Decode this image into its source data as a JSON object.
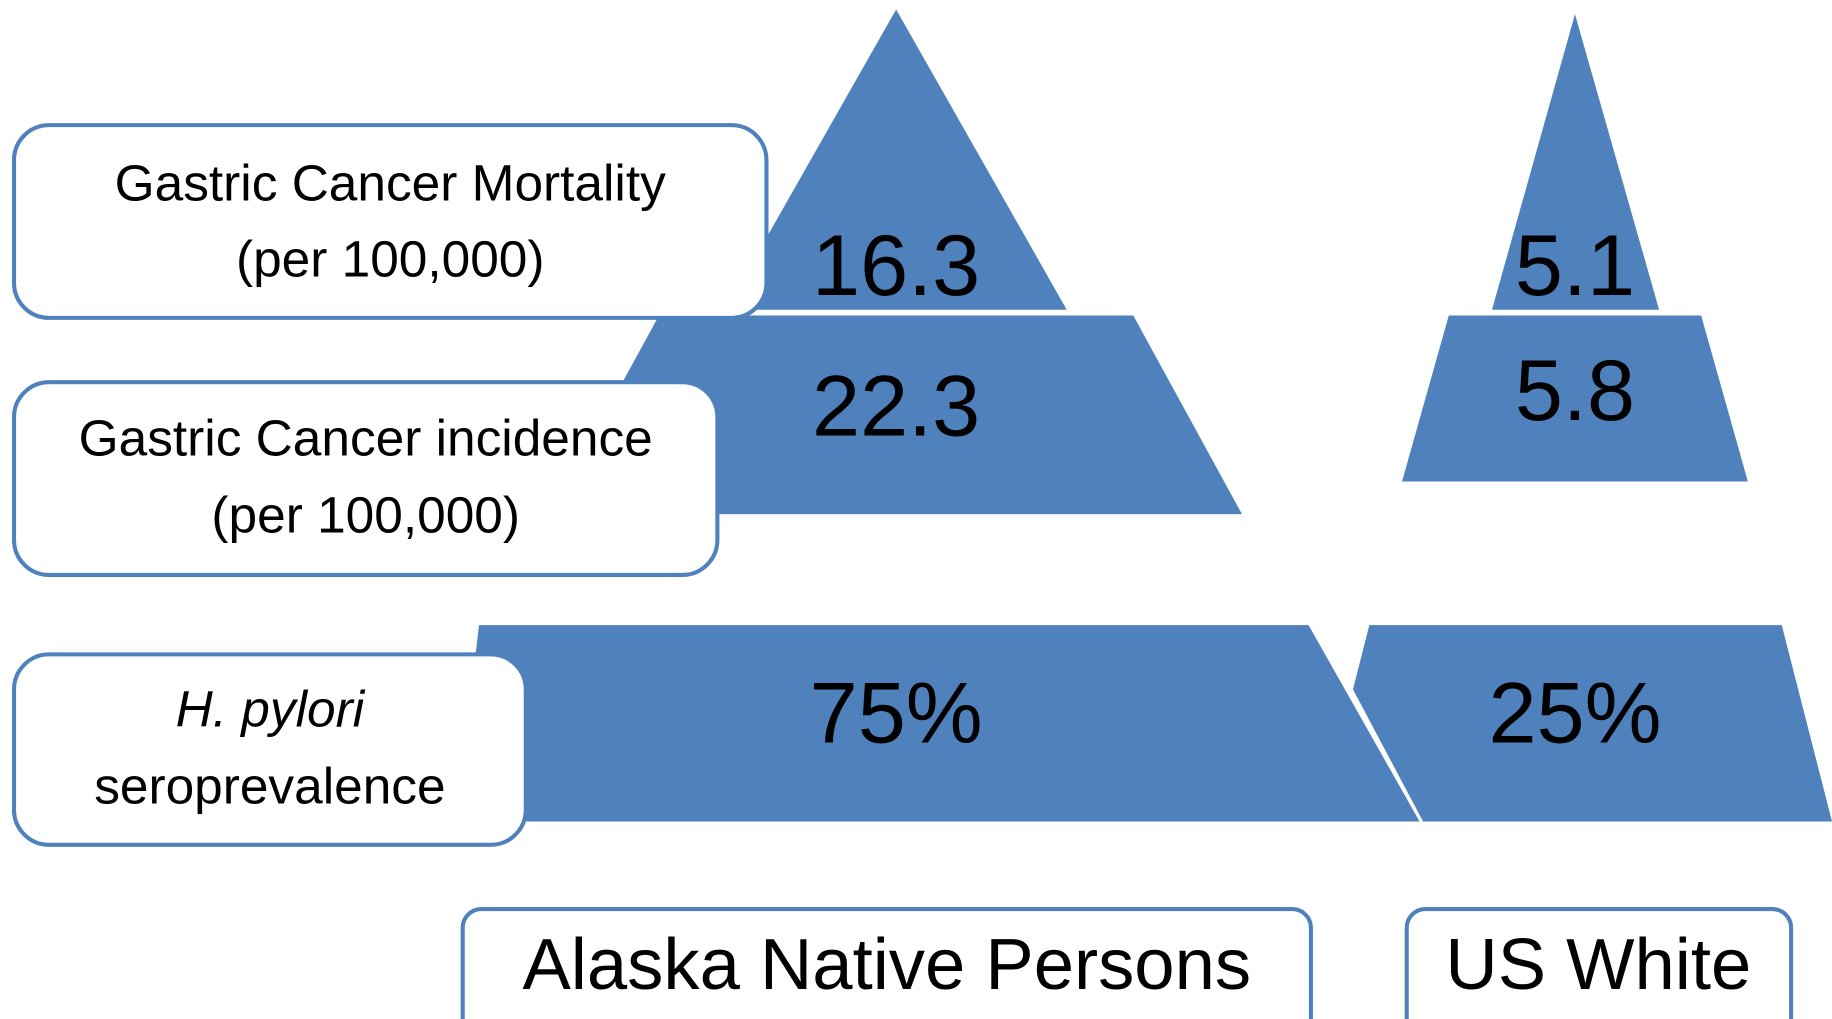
{
  "rows": [
    {
      "lines": [
        "Gastric Cancer Mortality",
        "(per 100,000)"
      ],
      "values": [
        "16.3",
        "5.1"
      ]
    },
    {
      "lines": [
        "Gastric Cancer incidence",
        "(per 100,000)"
      ],
      "values": [
        "22.3",
        "5.8"
      ]
    },
    {
      "lines": [
        "H. pylori",
        "seroprevalence"
      ],
      "values": [
        "75%",
        "25%"
      ]
    }
  ],
  "groups": [
    "Alaska Native Persons",
    "US White"
  ]
}
